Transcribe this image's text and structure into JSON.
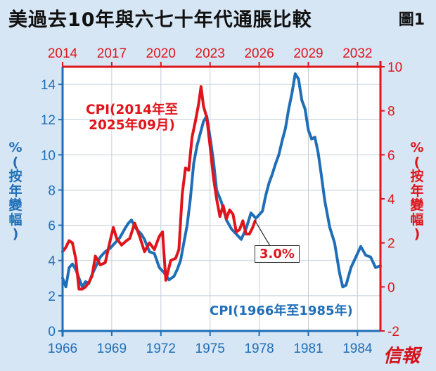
{
  "title": "美過去10年與六七十年代通脹比較",
  "figure_label": "圖1",
  "brand": "信報",
  "annotations": {
    "red_series_label_line1": "CPI(2014年至",
    "red_series_label_line2": "2025年09月)",
    "blue_series_label": "CPI(1966年至1985年)",
    "latest_value": "3.0%"
  },
  "colors": {
    "background": "#d6e6f4",
    "plot_background": "#ffffff",
    "blue": "#1f6eb7",
    "red": "#e0141b",
    "grid": "#c4cdd8"
  },
  "chart_data": {
    "type": "line",
    "grid": true,
    "bottom_axis": {
      "label": "",
      "range": [
        1966,
        1985.4
      ],
      "ticks": [
        1966,
        1969,
        1972,
        1975,
        1978,
        1981,
        1984
      ],
      "tick_labels": [
        "1966",
        "1969",
        "1972",
        "1975",
        "1978",
        "1981",
        "1984"
      ]
    },
    "top_axis": {
      "label": "",
      "range": [
        2014,
        2033.4
      ],
      "ticks": [
        2014,
        2017,
        2020,
        2023,
        2026,
        2029,
        2032
      ],
      "tick_labels": [
        "2014",
        "2017",
        "2020",
        "2023",
        "2026",
        "2029",
        "2032"
      ]
    },
    "left_axis": {
      "label": "%(按年變幅)",
      "label_chars": [
        "%",
        "(",
        "按",
        "年",
        "變",
        "幅",
        ")"
      ],
      "range": [
        0,
        15
      ],
      "ticks": [
        0,
        2,
        4,
        6,
        8,
        10,
        12,
        14
      ],
      "tick_labels": [
        "0",
        "2",
        "4",
        "6",
        "8",
        "10",
        "12",
        "14"
      ]
    },
    "right_axis": {
      "label": "%(按年變幅)",
      "label_chars": [
        "%",
        "(",
        "按",
        "年",
        "變",
        "幅",
        ")"
      ],
      "range": [
        -2,
        10
      ],
      "ticks": [
        -2,
        0,
        2,
        4,
        6,
        8,
        10
      ],
      "tick_labels": [
        "-2",
        "0",
        "2",
        "4",
        "6",
        "8",
        "10"
      ]
    },
    "series": [
      {
        "name": "CPI(1966年至1985年)",
        "color": "#1f6eb7",
        "axis": "left/bottom",
        "x": [
          1966.0,
          1966.2,
          1966.4,
          1966.6,
          1966.8,
          1967.0,
          1967.2,
          1967.4,
          1967.6,
          1967.8,
          1968.0,
          1968.3,
          1968.6,
          1968.9,
          1969.2,
          1969.5,
          1969.8,
          1970.0,
          1970.2,
          1970.5,
          1970.8,
          1971.0,
          1971.3,
          1971.6,
          1971.9,
          1972.2,
          1972.5,
          1972.8,
          1973.0,
          1973.2,
          1973.4,
          1973.6,
          1973.8,
          1974.0,
          1974.2,
          1974.4,
          1974.6,
          1974.8,
          1975.0,
          1975.2,
          1975.4,
          1975.7,
          1976.0,
          1976.3,
          1976.6,
          1976.9,
          1977.2,
          1977.5,
          1977.8,
          1978.0,
          1978.2,
          1978.4,
          1978.6,
          1978.8,
          1979.0,
          1979.2,
          1979.4,
          1979.6,
          1979.8,
          1980.0,
          1980.2,
          1980.4,
          1980.6,
          1980.8,
          1981.0,
          1981.2,
          1981.4,
          1981.6,
          1981.8,
          1982.0,
          1982.3,
          1982.6,
          1982.9,
          1983.1,
          1983.3,
          1983.6,
          1983.9,
          1984.2,
          1984.5,
          1984.8,
          1985.1,
          1985.4
        ],
        "values": [
          3.0,
          2.5,
          3.6,
          3.8,
          3.5,
          3.0,
          2.5,
          2.8,
          2.7,
          3.2,
          3.6,
          4.2,
          4.5,
          4.7,
          5.0,
          5.3,
          5.8,
          6.1,
          6.3,
          5.8,
          5.5,
          5.2,
          4.5,
          4.4,
          3.6,
          3.3,
          2.9,
          3.1,
          3.5,
          4.0,
          5.0,
          6.0,
          7.5,
          9.5,
          10.5,
          11.2,
          11.9,
          12.2,
          11.0,
          9.7,
          8.0,
          7.3,
          6.3,
          5.8,
          5.5,
          5.2,
          5.8,
          6.7,
          6.4,
          6.6,
          6.8,
          7.7,
          8.4,
          8.9,
          9.5,
          10.0,
          10.8,
          11.5,
          12.6,
          13.5,
          14.6,
          14.3,
          13.1,
          12.6,
          11.4,
          10.9,
          11.0,
          10.1,
          8.8,
          7.4,
          5.9,
          5.0,
          3.3,
          2.5,
          2.6,
          3.6,
          4.2,
          4.8,
          4.3,
          4.2,
          3.6,
          3.7
        ]
      },
      {
        "name": "CPI(2014年至2025年09月)",
        "color": "#e0141b",
        "axis": "right/top",
        "x": [
          2014.0,
          2014.2,
          2014.4,
          2014.6,
          2014.8,
          2015.0,
          2015.2,
          2015.4,
          2015.6,
          2015.8,
          2016.0,
          2016.3,
          2016.6,
          2016.9,
          2017.1,
          2017.3,
          2017.6,
          2017.9,
          2018.1,
          2018.4,
          2018.7,
          2019.0,
          2019.3,
          2019.6,
          2019.9,
          2020.1,
          2020.3,
          2020.6,
          2020.9,
          2021.1,
          2021.3,
          2021.5,
          2021.7,
          2021.9,
          2022.1,
          2022.3,
          2022.45,
          2022.6,
          2022.8,
          2023.0,
          2023.2,
          2023.4,
          2023.6,
          2023.8,
          2024.0,
          2024.2,
          2024.4,
          2024.6,
          2024.8,
          2025.0,
          2025.2,
          2025.4,
          2025.6,
          2025.75
        ],
        "values": [
          1.6,
          1.8,
          2.1,
          2.0,
          1.3,
          -0.1,
          -0.1,
          0.0,
          0.2,
          0.5,
          1.4,
          1.0,
          1.1,
          2.1,
          2.7,
          2.2,
          1.9,
          2.1,
          2.2,
          2.9,
          2.3,
          1.6,
          2.0,
          1.7,
          2.3,
          2.5,
          0.3,
          1.2,
          1.3,
          1.7,
          4.2,
          5.4,
          5.3,
          6.8,
          7.5,
          8.3,
          9.1,
          8.2,
          7.7,
          6.4,
          5.0,
          4.0,
          3.2,
          3.7,
          3.1,
          3.5,
          3.3,
          2.5,
          2.6,
          3.0,
          2.4,
          2.4,
          2.7,
          3.0
        ]
      }
    ]
  }
}
